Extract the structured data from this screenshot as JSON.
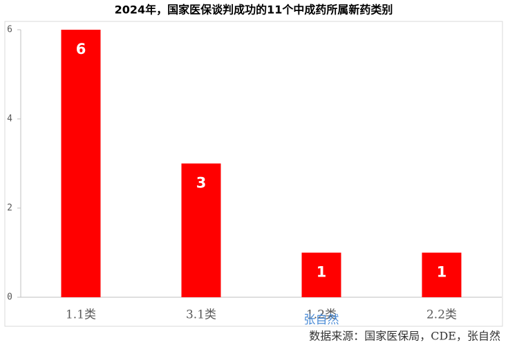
{
  "chart_data": {
    "type": "bar",
    "title": "2024年，国家医保谈判成功的11个中成药所属新药类别",
    "categories": [
      "1.1类",
      "3.1类",
      "1.2类",
      "2.2类"
    ],
    "values": [
      6,
      3,
      1,
      1
    ],
    "color": "#ff0000",
    "ylim": [
      0,
      6
    ],
    "yticks": [
      0,
      2,
      4,
      6
    ],
    "grid": false,
    "watermark": "张自然",
    "source": "数据来源：国家医保局，CDE，张自然"
  }
}
